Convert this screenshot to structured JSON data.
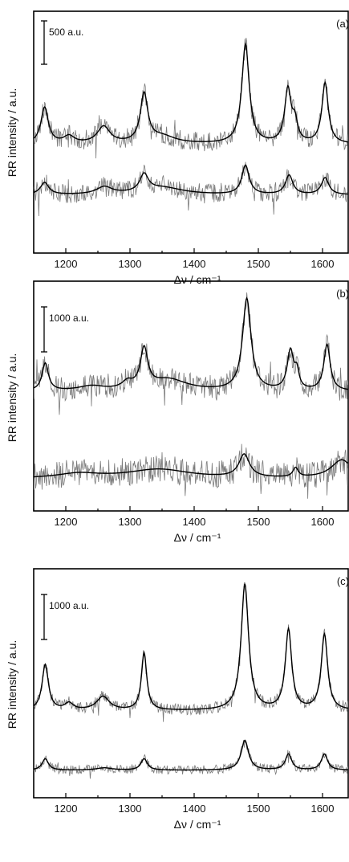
{
  "chart_data": [
    {
      "type": "line",
      "panel_label": "(a)",
      "xlabel": "Δν / cm⁻¹",
      "ylabel": "RR intensity / a.u.",
      "xlim": [
        1150,
        1640
      ],
      "xticks": [
        1200,
        1300,
        1400,
        1500,
        1600
      ],
      "scale_bar": "500 a.u.",
      "series": [
        {
          "baseline": 0.45,
          "noise": 0.04,
          "peaks": [
            {
              "x": 1167,
              "h": 0.15,
              "w": 7
            },
            {
              "x": 1205,
              "h": 0.03,
              "w": 10
            },
            {
              "x": 1259,
              "h": 0.07,
              "w": 12
            },
            {
              "x": 1322,
              "h": 0.2,
              "w": 7
            },
            {
              "x": 1350,
              "h": 0.03,
              "w": 25
            },
            {
              "x": 1480,
              "h": 0.41,
              "w": 7
            },
            {
              "x": 1546,
              "h": 0.22,
              "w": 6
            },
            {
              "x": 1557,
              "h": 0.08,
              "w": 5
            },
            {
              "x": 1604,
              "h": 0.25,
              "w": 6
            }
          ]
        },
        {
          "baseline": 0.24,
          "noise": 0.04,
          "peaks": [
            {
              "x": 1167,
              "h": 0.05,
              "w": 8
            },
            {
              "x": 1260,
              "h": 0.03,
              "w": 15
            },
            {
              "x": 1322,
              "h": 0.07,
              "w": 8
            },
            {
              "x": 1350,
              "h": 0.03,
              "w": 40
            },
            {
              "x": 1480,
              "h": 0.12,
              "w": 7
            },
            {
              "x": 1548,
              "h": 0.08,
              "w": 7
            },
            {
              "x": 1604,
              "h": 0.07,
              "w": 7
            }
          ]
        }
      ]
    },
    {
      "type": "line",
      "panel_label": "(b)",
      "xlabel": "Δν / cm⁻¹",
      "ylabel": "RR intensity / a.u.",
      "xlim": [
        1150,
        1640
      ],
      "xticks": [
        1200,
        1300,
        1400,
        1500,
        1600
      ],
      "scale_bar": "1000 a.u.",
      "series": [
        {
          "baseline": 0.52,
          "noise": 0.05,
          "peaks": [
            {
              "x": 1168,
              "h": 0.12,
              "w": 6
            },
            {
              "x": 1240,
              "h": 0.02,
              "w": 25
            },
            {
              "x": 1296,
              "h": 0.03,
              "w": 10
            },
            {
              "x": 1322,
              "h": 0.17,
              "w": 7
            },
            {
              "x": 1360,
              "h": 0.05,
              "w": 35
            },
            {
              "x": 1482,
              "h": 0.4,
              "w": 8
            },
            {
              "x": 1550,
              "h": 0.17,
              "w": 6
            },
            {
              "x": 1560,
              "h": 0.07,
              "w": 4
            },
            {
              "x": 1607,
              "h": 0.2,
              "w": 6
            }
          ]
        },
        {
          "baseline": 0.14,
          "noise": 0.06,
          "peaks": [
            {
              "x": 1220,
              "h": 0.02,
              "w": 40
            },
            {
              "x": 1345,
              "h": 0.04,
              "w": 60
            },
            {
              "x": 1478,
              "h": 0.1,
              "w": 10
            },
            {
              "x": 1558,
              "h": 0.04,
              "w": 5
            },
            {
              "x": 1630,
              "h": 0.08,
              "w": 20
            }
          ]
        }
      ]
    },
    {
      "type": "line",
      "panel_label": "(c)",
      "xlabel": "Δν / cm⁻¹",
      "ylabel": "RR intensity / a.u.",
      "xlim": [
        1150,
        1640
      ],
      "xticks": [
        1200,
        1300,
        1400,
        1500,
        1600
      ],
      "scale_bar": "1000 a.u.",
      "series": [
        {
          "baseline": 0.38,
          "noise": 0.025,
          "peaks": [
            {
              "x": 1168,
              "h": 0.2,
              "w": 6
            },
            {
              "x": 1205,
              "h": 0.03,
              "w": 8
            },
            {
              "x": 1258,
              "h": 0.06,
              "w": 12
            },
            {
              "x": 1322,
              "h": 0.25,
              "w": 5
            },
            {
              "x": 1479,
              "h": 0.55,
              "w": 7
            },
            {
              "x": 1547,
              "h": 0.35,
              "w": 6
            },
            {
              "x": 1603,
              "h": 0.33,
              "w": 6
            }
          ]
        },
        {
          "baseline": 0.12,
          "noise": 0.02,
          "peaks": [
            {
              "x": 1168,
              "h": 0.05,
              "w": 6
            },
            {
              "x": 1260,
              "h": 0.01,
              "w": 15
            },
            {
              "x": 1322,
              "h": 0.05,
              "w": 6
            },
            {
              "x": 1479,
              "h": 0.13,
              "w": 7
            },
            {
              "x": 1547,
              "h": 0.07,
              "w": 6
            },
            {
              "x": 1603,
              "h": 0.07,
              "w": 6
            }
          ]
        }
      ]
    }
  ]
}
